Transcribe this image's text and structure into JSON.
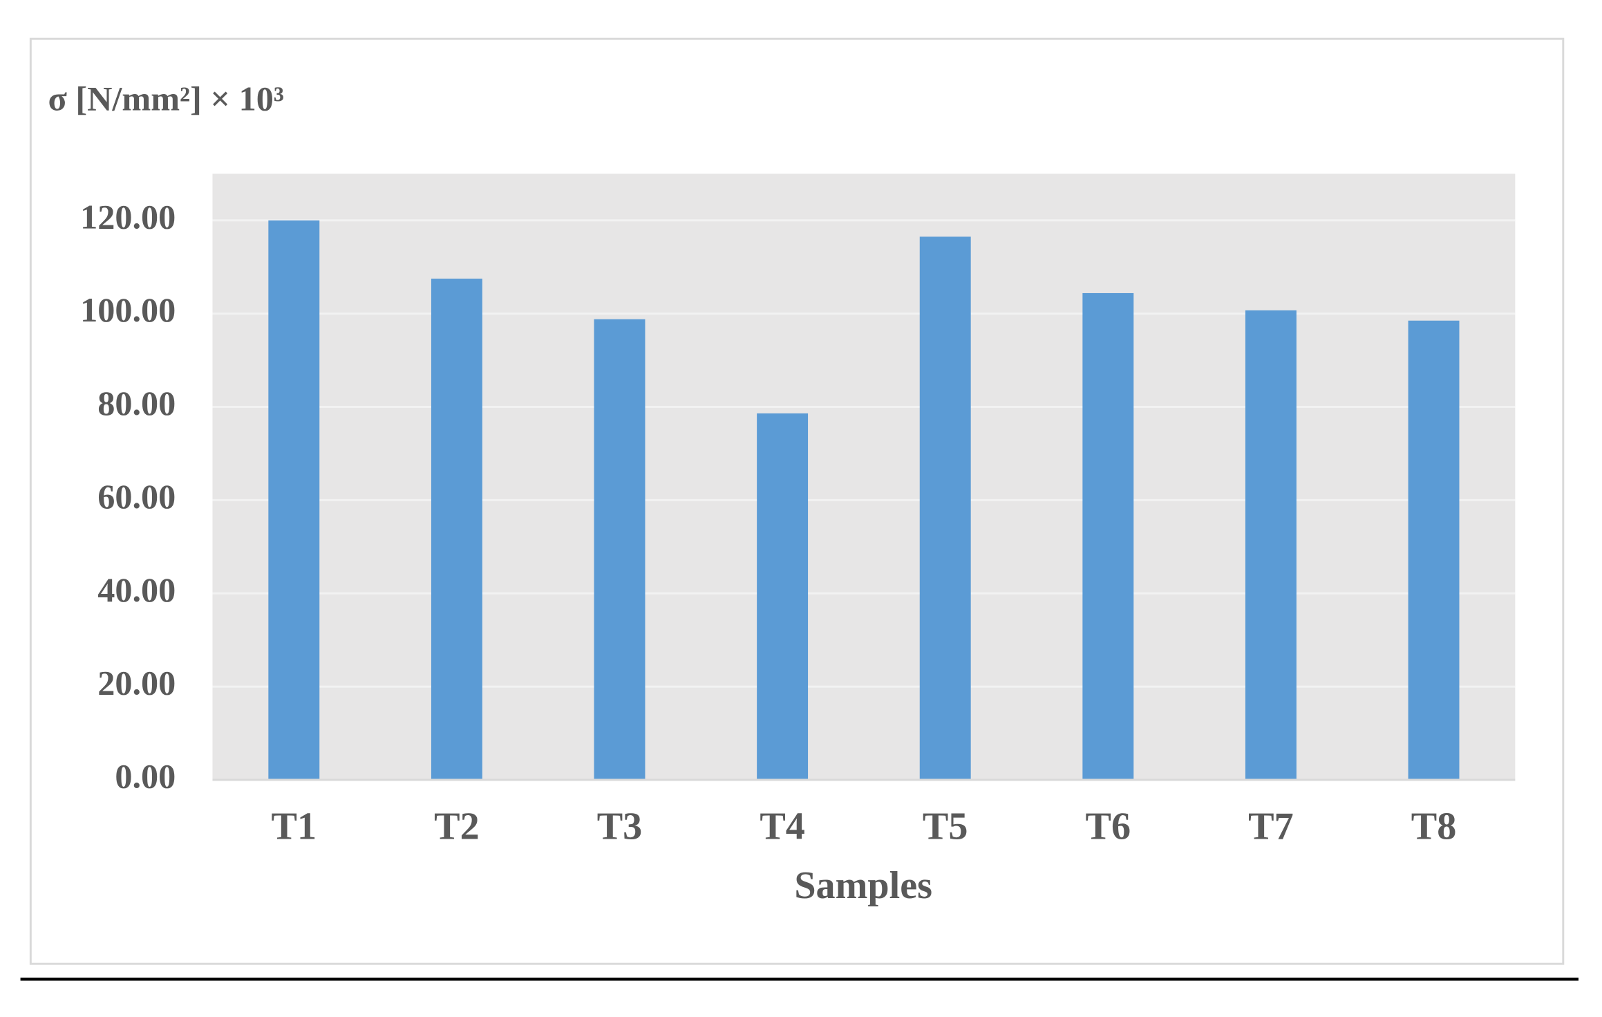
{
  "chart_data": {
    "type": "bar",
    "y_axis_label": "σ [N/mm²] × 10³",
    "x_axis_label": "Samples",
    "categories": [
      "T1",
      "T2",
      "T3",
      "T4",
      "T5",
      "T6",
      "T7",
      "T8"
    ],
    "values": [
      120,
      107.5,
      98.8,
      78.6,
      116.5,
      104.4,
      100.7,
      98.5
    ],
    "color": "#5b9bd5",
    "ylim": [
      0,
      130
    ],
    "yticks": [
      {
        "value": 0,
        "label": "0.00"
      },
      {
        "value": 20,
        "label": "20.00"
      },
      {
        "value": 40,
        "label": "40.00"
      },
      {
        "value": 60,
        "label": "60.00"
      },
      {
        "value": 80,
        "label": "80.00"
      },
      {
        "value": 100,
        "label": "100.00"
      },
      {
        "value": 120,
        "label": "120.00"
      }
    ],
    "grid": true
  }
}
